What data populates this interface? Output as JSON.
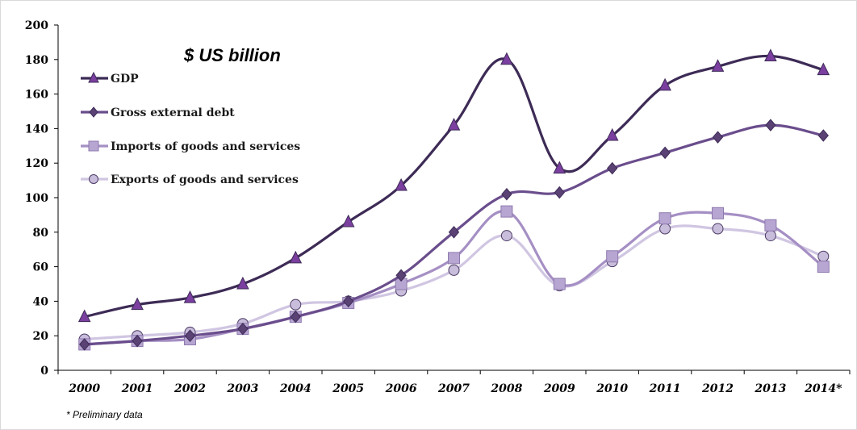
{
  "chart_data": {
    "type": "line",
    "title": "$ US billion",
    "xlabel": "",
    "ylabel": "",
    "categories": [
      "2000",
      "2001",
      "2002",
      "2003",
      "2004",
      "2005",
      "2006",
      "2007",
      "2008",
      "2009",
      "2010",
      "2011",
      "2012",
      "2013",
      "2014*"
    ],
    "ylim": [
      0,
      200
    ],
    "yticks": [
      0,
      20,
      40,
      60,
      80,
      100,
      120,
      140,
      160,
      180,
      200
    ],
    "grid": false,
    "legend_position": "top-left",
    "series": [
      {
        "name": "GDP",
        "marker": "triangle",
        "color": "#3d2b56",
        "marker_color": "#7b3fa0",
        "values": [
          31,
          38,
          42,
          50,
          65,
          86,
          107,
          142,
          180,
          117,
          136,
          165,
          176,
          182,
          174
        ]
      },
      {
        "name": "Gross external debt",
        "marker": "diamond",
        "color": "#6a4d8c",
        "marker_color": "#5a4275",
        "values": [
          15,
          17,
          20,
          24,
          31,
          40,
          55,
          80,
          102,
          103,
          117,
          126,
          135,
          142,
          136
        ]
      },
      {
        "name": "Imports of goods and services",
        "marker": "square",
        "color": "#a58fc4",
        "marker_color": "#b7a5d2",
        "values": [
          15,
          17,
          18,
          24,
          31,
          39,
          50,
          65,
          92,
          50,
          66,
          88,
          91,
          84,
          60
        ]
      },
      {
        "name": "Exports of goods and services",
        "marker": "circle",
        "color": "#d0c6e2",
        "marker_color": "#c9bddc",
        "values": [
          18,
          20,
          22,
          27,
          38,
          40,
          46,
          58,
          78,
          49,
          63,
          82,
          82,
          78,
          66
        ]
      }
    ],
    "footnote": "* Preliminary data"
  }
}
